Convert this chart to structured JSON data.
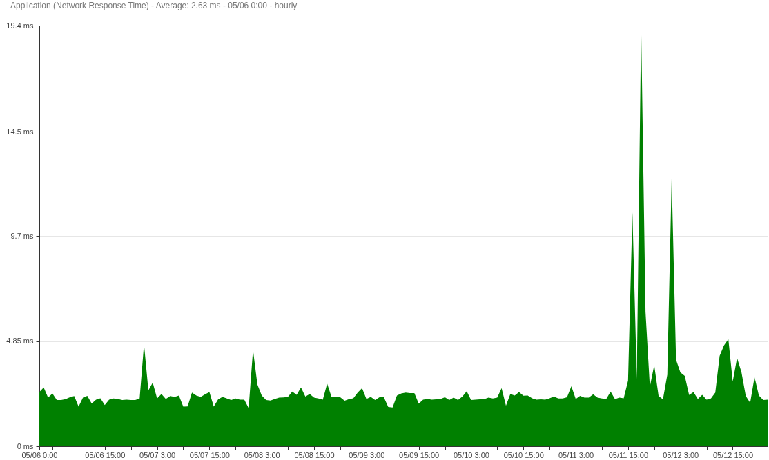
{
  "chart_data": {
    "type": "area",
    "title": "Application (Network Response Time) - Average: 2.63 ms - 05/06 0:00 - hourly",
    "x": [
      "--05-06T00:00",
      "--05-06T01:00",
      "--05-06T02:00",
      "--05-06T03:00",
      "--05-06T04:00",
      "--05-06T05:00",
      "--05-06T06:00",
      "--05-06T07:00",
      "--05-06T08:00",
      "--05-06T09:00",
      "--05-06T10:00",
      "--05-06T11:00",
      "--05-06T12:00",
      "--05-06T13:00",
      "--05-06T14:00",
      "--05-06T15:00",
      "--05-06T16:00",
      "--05-06T17:00",
      "--05-06T18:00",
      "--05-06T19:00",
      "--05-06T20:00",
      "--05-06T21:00",
      "--05-06T22:00",
      "--05-06T23:00",
      "--05-07T00:00",
      "--05-07T01:00",
      "--05-07T02:00",
      "--05-07T03:00",
      "--05-07T04:00",
      "--05-07T05:00",
      "--05-07T06:00",
      "--05-07T07:00",
      "--05-07T08:00",
      "--05-07T09:00",
      "--05-07T10:00",
      "--05-07T11:00",
      "--05-07T12:00",
      "--05-07T13:00",
      "--05-07T14:00",
      "--05-07T15:00",
      "--05-07T16:00",
      "--05-07T17:00",
      "--05-07T18:00",
      "--05-07T19:00",
      "--05-07T20:00",
      "--05-07T21:00",
      "--05-07T22:00",
      "--05-07T23:00",
      "--05-08T00:00",
      "--05-08T01:00",
      "--05-08T02:00",
      "--05-08T03:00",
      "--05-08T04:00",
      "--05-08T05:00",
      "--05-08T06:00",
      "--05-08T07:00",
      "--05-08T08:00",
      "--05-08T09:00",
      "--05-08T10:00",
      "--05-08T11:00",
      "--05-08T12:00",
      "--05-08T13:00",
      "--05-08T14:00",
      "--05-08T15:00",
      "--05-08T16:00",
      "--05-08T17:00",
      "--05-08T18:00",
      "--05-08T19:00",
      "--05-08T20:00",
      "--05-08T21:00",
      "--05-08T22:00",
      "--05-08T23:00",
      "--05-09T00:00",
      "--05-09T01:00",
      "--05-09T02:00",
      "--05-09T03:00",
      "--05-09T04:00",
      "--05-09T05:00",
      "--05-09T06:00",
      "--05-09T07:00",
      "--05-09T08:00",
      "--05-09T09:00",
      "--05-09T10:00",
      "--05-09T11:00",
      "--05-09T12:00",
      "--05-09T13:00",
      "--05-09T14:00",
      "--05-09T15:00",
      "--05-09T16:00",
      "--05-09T17:00",
      "--05-09T18:00",
      "--05-09T19:00",
      "--05-09T20:00",
      "--05-09T21:00",
      "--05-09T22:00",
      "--05-09T23:00",
      "--05-10T00:00",
      "--05-10T01:00",
      "--05-10T02:00",
      "--05-10T03:00",
      "--05-10T04:00",
      "--05-10T05:00",
      "--05-10T06:00",
      "--05-10T07:00",
      "--05-10T08:00",
      "--05-10T09:00",
      "--05-10T10:00",
      "--05-10T11:00",
      "--05-10T12:00",
      "--05-10T13:00",
      "--05-10T14:00",
      "--05-10T15:00",
      "--05-10T16:00",
      "--05-10T17:00",
      "--05-10T18:00",
      "--05-10T19:00",
      "--05-10T20:00",
      "--05-10T21:00",
      "--05-10T22:00",
      "--05-10T23:00",
      "--05-11T00:00",
      "--05-11T01:00",
      "--05-11T02:00",
      "--05-11T03:00",
      "--05-11T04:00",
      "--05-11T05:00",
      "--05-11T06:00",
      "--05-11T07:00",
      "--05-11T08:00",
      "--05-11T09:00",
      "--05-11T10:00",
      "--05-11T11:00",
      "--05-11T12:00",
      "--05-11T13:00",
      "--05-11T14:00",
      "--05-11T15:00",
      "--05-11T16:00",
      "--05-11T17:00",
      "--05-11T18:00",
      "--05-11T19:00",
      "--05-11T20:00",
      "--05-11T21:00",
      "--05-11T22:00",
      "--05-11T23:00",
      "--05-12T00:00",
      "--05-12T01:00",
      "--05-12T02:00",
      "--05-12T03:00",
      "--05-12T04:00",
      "--05-12T05:00",
      "--05-12T06:00",
      "--05-12T07:00",
      "--05-12T08:00",
      "--05-12T09:00",
      "--05-12T10:00",
      "--05-12T11:00",
      "--05-12T12:00",
      "--05-12T13:00",
      "--05-12T14:00",
      "--05-12T15:00",
      "--05-12T16:00",
      "--05-12T17:00",
      "--05-12T18:00",
      "--05-12T19:00",
      "--05-12T20:00",
      "--05-12T21:00",
      "--05-12T22:00",
      "--05-12T23:00"
    ],
    "series": [
      {
        "color": "#008000",
        "values": [
          2.5,
          2.71,
          2.24,
          2.43,
          2.13,
          2.13,
          2.17,
          2.26,
          2.31,
          1.83,
          2.24,
          2.32,
          1.97,
          2.15,
          2.21,
          1.9,
          2.15,
          2.2,
          2.18,
          2.13,
          2.15,
          2.13,
          2.13,
          2.2,
          4.7,
          2.58,
          2.93,
          2.2,
          2.41,
          2.18,
          2.31,
          2.27,
          2.34,
          1.83,
          1.84,
          2.47,
          2.34,
          2.27,
          2.39,
          2.5,
          1.83,
          2.16,
          2.27,
          2.2,
          2.13,
          2.2,
          2.15,
          2.15,
          1.76,
          4.44,
          2.85,
          2.34,
          2.13,
          2.11,
          2.18,
          2.24,
          2.25,
          2.27,
          2.52,
          2.37,
          2.71,
          2.29,
          2.41,
          2.24,
          2.2,
          2.15,
          2.89,
          2.27,
          2.26,
          2.26,
          2.1,
          2.17,
          2.21,
          2.47,
          2.68,
          2.18,
          2.27,
          2.13,
          2.26,
          2.26,
          1.81,
          1.79,
          2.34,
          2.43,
          2.47,
          2.45,
          2.45,
          1.96,
          2.15,
          2.18,
          2.15,
          2.16,
          2.18,
          2.26,
          2.13,
          2.24,
          2.13,
          2.29,
          2.54,
          2.13,
          2.15,
          2.16,
          2.17,
          2.24,
          2.2,
          2.24,
          2.68,
          1.87,
          2.41,
          2.34,
          2.5,
          2.33,
          2.34,
          2.21,
          2.15,
          2.16,
          2.15,
          2.21,
          2.29,
          2.2,
          2.2,
          2.26,
          2.77,
          2.18,
          2.32,
          2.24,
          2.24,
          2.39,
          2.24,
          2.2,
          2.18,
          2.52,
          2.17,
          2.24,
          2.21,
          3.03,
          10.78,
          3.1,
          19.4,
          6.2,
          2.74,
          3.74,
          2.31,
          2.16,
          3.3,
          12.37,
          3.99,
          3.4,
          3.24,
          2.36,
          2.5,
          2.18,
          2.37,
          2.15,
          2.2,
          2.47,
          4.17,
          4.65,
          4.94,
          2.98,
          4.07,
          3.42,
          2.31,
          2.0,
          3.19,
          2.34,
          2.13,
          2.15
        ]
      }
    ],
    "xlim": [
      "--05-06T00:00",
      "--05-12T23:00"
    ],
    "xticks": [
      {
        "value": "--05-06T00:00",
        "label": "05/06 0:00"
      },
      {
        "value": "--05-06T03:00",
        "label": null
      },
      {
        "value": "--05-06T09:00",
        "label": null
      },
      {
        "value": "--05-06T15:00",
        "label": "05/06 15:00"
      },
      {
        "value": "--05-06T21:00",
        "label": null
      },
      {
        "value": "--05-07T03:00",
        "label": "05/07 3:00"
      },
      {
        "value": "--05-07T09:00",
        "label": null
      },
      {
        "value": "--05-07T15:00",
        "label": "05/07 15:00"
      },
      {
        "value": "--05-07T21:00",
        "label": null
      },
      {
        "value": "--05-08T03:00",
        "label": "05/08 3:00"
      },
      {
        "value": "--05-08T09:00",
        "label": null
      },
      {
        "value": "--05-08T15:00",
        "label": "05/08 15:00"
      },
      {
        "value": "--05-08T21:00",
        "label": null
      },
      {
        "value": "--05-09T03:00",
        "label": "05/09 3:00"
      },
      {
        "value": "--05-09T09:00",
        "label": null
      },
      {
        "value": "--05-09T15:00",
        "label": "05/09 15:00"
      },
      {
        "value": "--05-09T21:00",
        "label": null
      },
      {
        "value": "--05-10T03:00",
        "label": "05/10 3:00"
      },
      {
        "value": "--05-10T09:00",
        "label": null
      },
      {
        "value": "--05-10T15:00",
        "label": "05/10 15:00"
      },
      {
        "value": "--05-10T21:00",
        "label": null
      },
      {
        "value": "--05-11T03:00",
        "label": "05/11 3:00"
      },
      {
        "value": "--05-11T09:00",
        "label": null
      },
      {
        "value": "--05-11T15:00",
        "label": "05/11 15:00"
      },
      {
        "value": "--05-11T21:00",
        "label": null
      },
      {
        "value": "--05-12T03:00",
        "label": "05/12 3:00"
      },
      {
        "value": "--05-12T09:00",
        "label": null
      },
      {
        "value": "--05-12T15:00",
        "label": "05/12 15:00"
      },
      {
        "value": "--05-12T21:00",
        "label": null
      }
    ],
    "ylim": [
      0,
      19.4
    ],
    "yticks": [
      {
        "value": 0,
        "label": "0 ms"
      },
      {
        "value": 4.85,
        "label": "4.85 ms"
      },
      {
        "value": 9.7,
        "label": "9.7 ms"
      },
      {
        "value": 14.5,
        "label": "14.5 ms"
      },
      {
        "value": 19.4,
        "label": "19.4 ms"
      }
    ],
    "grid": "y"
  }
}
